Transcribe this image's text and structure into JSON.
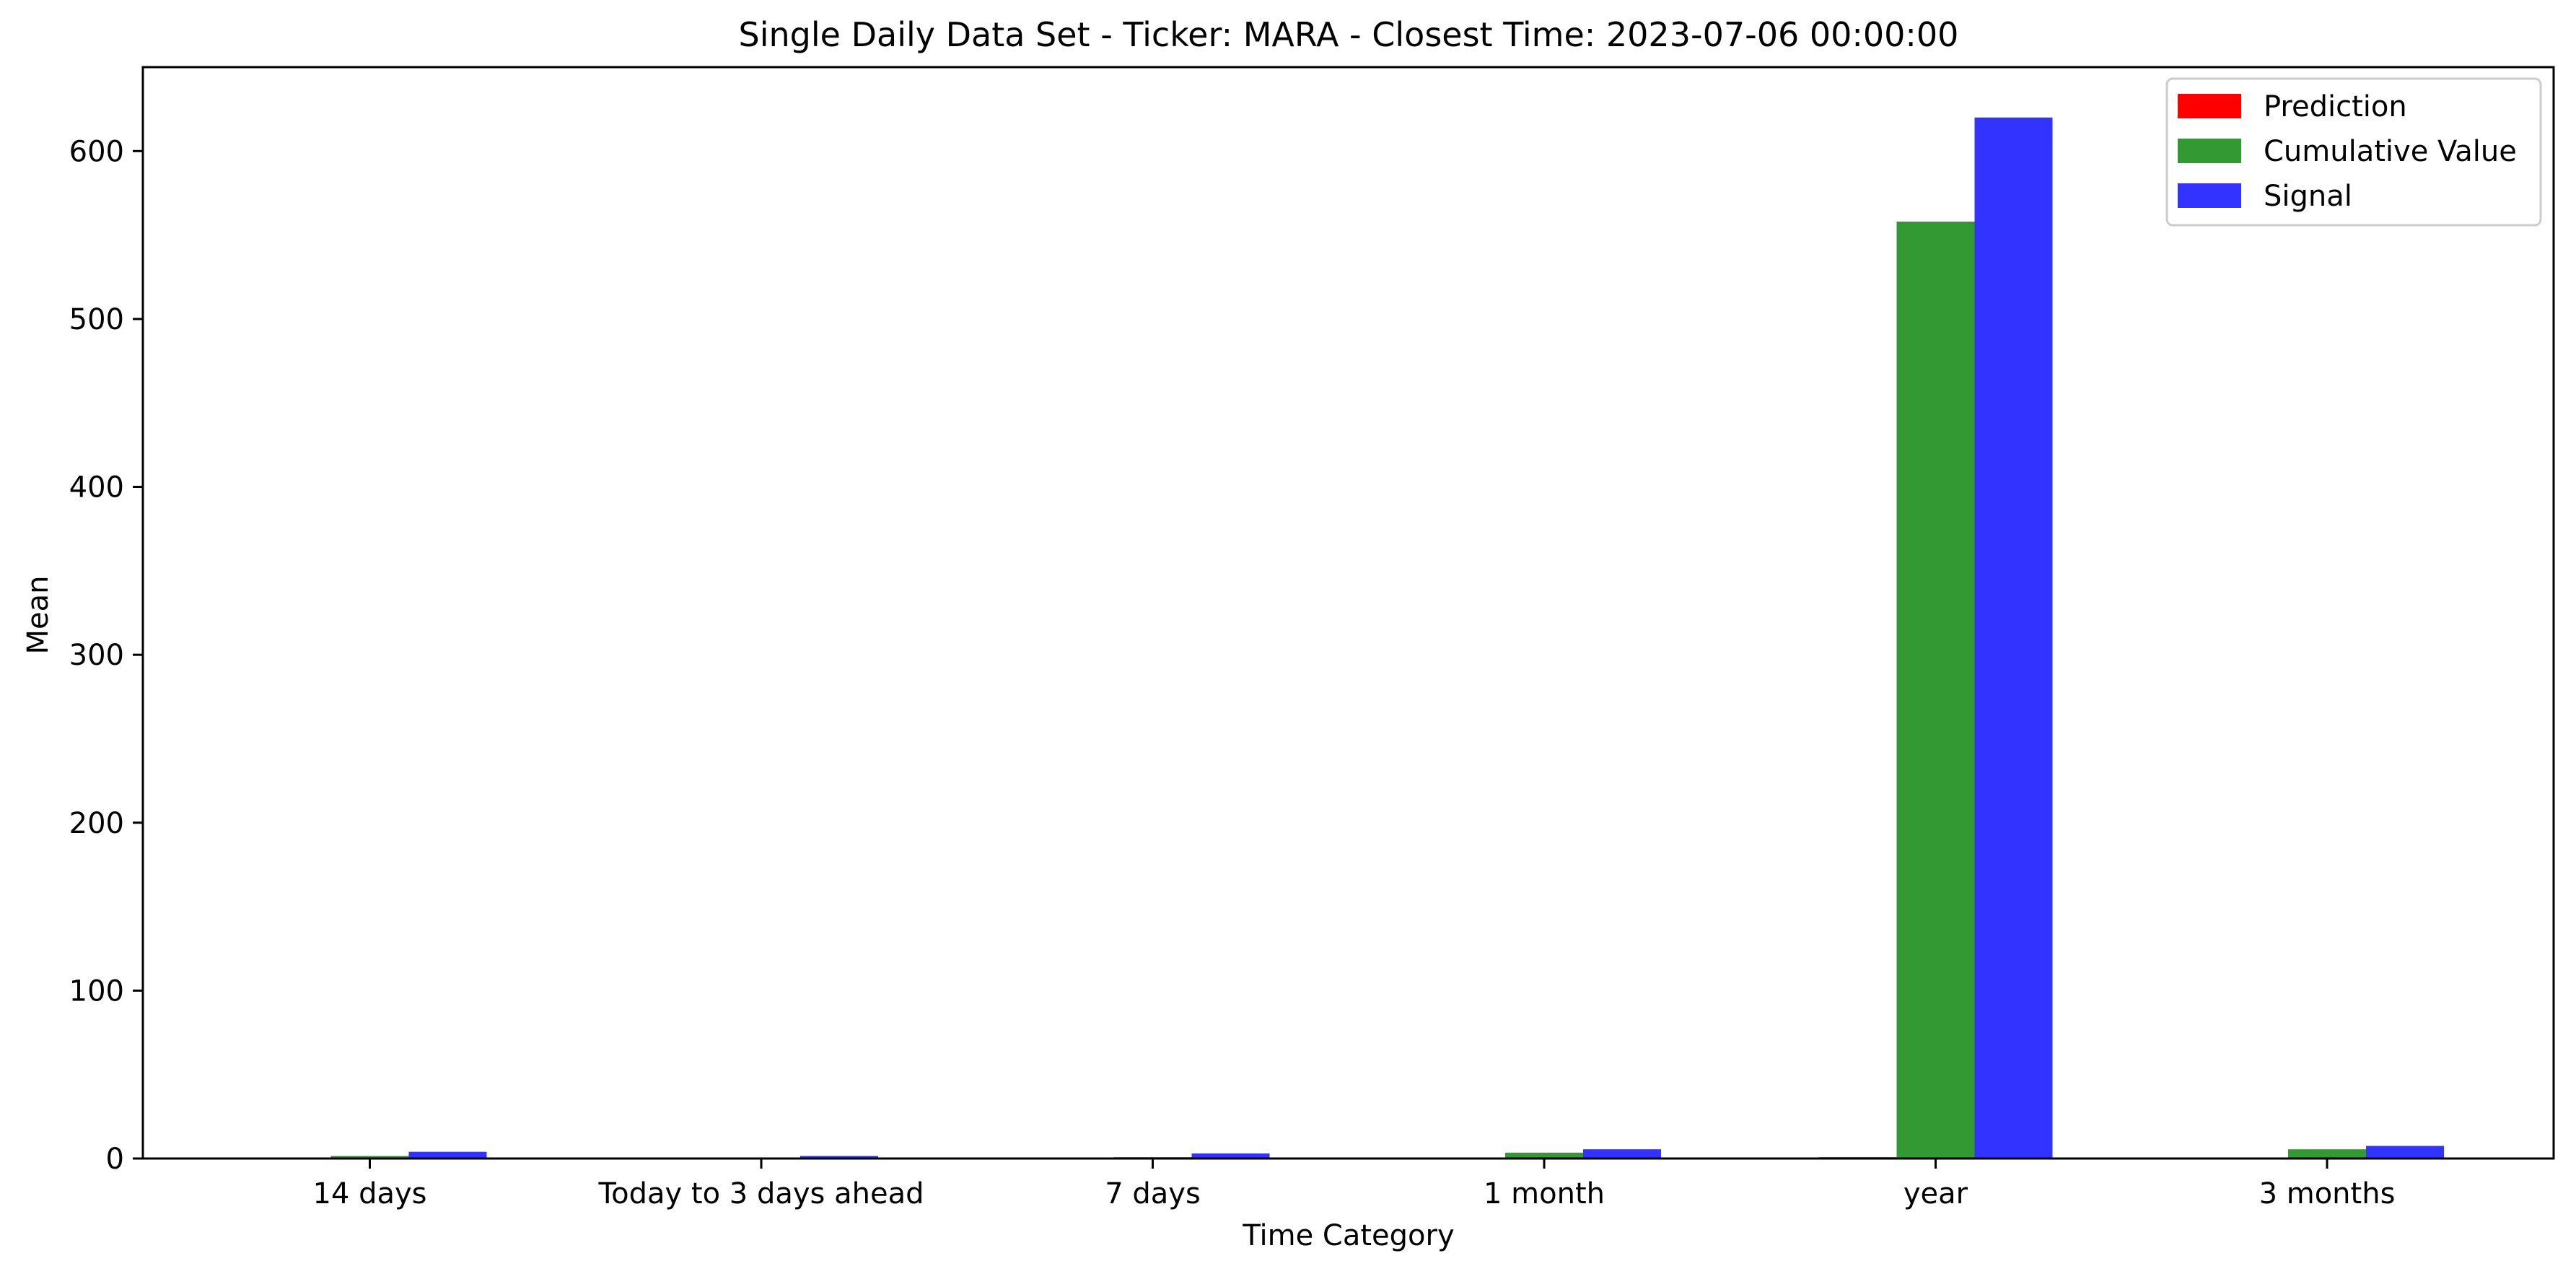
{
  "chart_data": {
    "type": "bar",
    "title": "Single Daily Data Set - Ticker: MARA - Closest Time: 2023-07-06 00:00:00",
    "xlabel": "Time Category",
    "ylabel": "Mean",
    "categories": [
      "14 days",
      "Today to 3 days ahead",
      "7 days",
      "1 month",
      "year",
      "3 months"
    ],
    "series": [
      {
        "name": "Prediction",
        "color": "#ff0000",
        "values": [
          0.1,
          0.05,
          0.1,
          0.2,
          0.8,
          0.6
        ]
      },
      {
        "name": "Cumulative Value",
        "color": "#339933",
        "values": [
          1.5,
          0.3,
          0.8,
          3.5,
          558,
          5.5
        ]
      },
      {
        "name": "Signal",
        "color": "#3333ff",
        "values": [
          4,
          1.5,
          3,
          5.5,
          620,
          7.5
        ]
      }
    ],
    "ylim": [
      0,
      650
    ],
    "yticks": [
      0,
      100,
      200,
      300,
      400,
      500,
      600
    ],
    "legend_position": "top-right",
    "grid": false
  }
}
